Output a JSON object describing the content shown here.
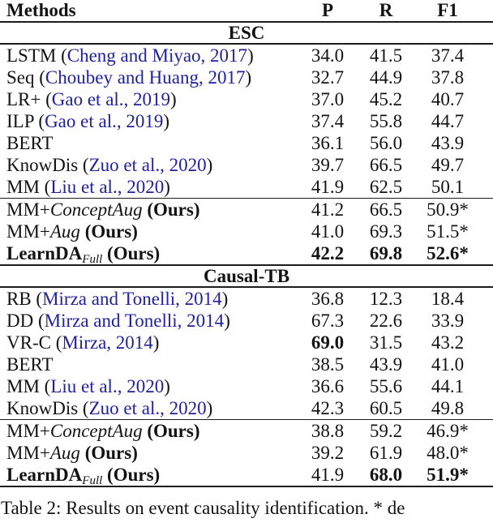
{
  "colors": {
    "citation_blue": "#21219f",
    "text": "#131313",
    "rule": "#1c1c1c"
  },
  "table": {
    "headers": {
      "methods": "Methods",
      "p": "P",
      "r": "R",
      "f1": "F1"
    },
    "common": {
      "ours_suffix": "(Ours)"
    },
    "sections": [
      {
        "title": "ESC",
        "rows": [
          {
            "pre": "LSTM (",
            "cite": "Cheng and Miyao, 2017",
            "post": ")",
            "p": "34.0",
            "r": "41.5",
            "f1": "37.4"
          },
          {
            "pre": "Seq (",
            "cite": "Choubey and Huang, 2017",
            "post": ")",
            "p": "32.7",
            "r": "44.9",
            "f1": "37.8"
          },
          {
            "pre": "LR+ (",
            "cite": "Gao et al., 2019",
            "post": ")",
            "p": "37.0",
            "r": "45.2",
            "f1": "40.7"
          },
          {
            "pre": "ILP (",
            "cite": "Gao et al., 2019",
            "post": ")",
            "p": "37.4",
            "r": "55.8",
            "f1": "44.7"
          },
          {
            "pre": "BERT",
            "p": "36.1",
            "r": "56.0",
            "f1": "43.9"
          },
          {
            "pre": "KnowDis (",
            "cite": "Zuo et al., 2020",
            "post": ")",
            "p": "39.7",
            "r": "66.5",
            "f1": "49.7"
          },
          {
            "pre": "MM (",
            "cite": "Liu et al., 2020",
            "post": ")",
            "p": "41.9",
            "r": "62.5",
            "f1": "50.1"
          }
        ],
        "ours_rows": [
          {
            "pre": "MM+",
            "italic": "ConceptAug",
            "p": "41.2",
            "r": "66.5",
            "f1": "50.9*"
          },
          {
            "pre": "MM+",
            "italic": "Aug",
            "p": "41.0",
            "r": "69.3",
            "f1": "51.5*"
          },
          {
            "bold": "LearnDA",
            "sub": "Full",
            "p": "42.2",
            "r": "69.8",
            "f1": "52.6*"
          }
        ]
      },
      {
        "title": "Causal-TB",
        "rows": [
          {
            "pre": "RB (",
            "cite": "Mirza and Tonelli, 2014",
            "post": ")",
            "p": "36.8",
            "r": "12.3",
            "f1": "18.4"
          },
          {
            "pre": "DD (",
            "cite": "Mirza and Tonelli, 2014",
            "post": ")",
            "p": "67.3",
            "r": "22.6",
            "f1": "33.9"
          },
          {
            "pre": "VR-C (",
            "cite": "Mirza, 2014",
            "post": ")",
            "p": "69.0",
            "r": "31.5",
            "f1": "43.2"
          },
          {
            "pre": "BERT",
            "p": "38.5",
            "r": "43.9",
            "f1": "41.0"
          },
          {
            "pre": "MM (",
            "cite": "Liu et al., 2020",
            "post": ")",
            "p": "36.6",
            "r": "55.6",
            "f1": "44.1"
          },
          {
            "pre": "KnowDis (",
            "cite": "Zuo et al., 2020",
            "post": ")",
            "p": "42.3",
            "r": "60.5",
            "f1": "49.8"
          }
        ],
        "ours_rows": [
          {
            "pre": "MM+",
            "italic": "ConceptAug",
            "p": "38.8",
            "r": "59.2",
            "f1": "46.9*"
          },
          {
            "pre": "MM+",
            "italic": "Aug",
            "p": "39.2",
            "r": "61.9",
            "f1": "48.0*"
          },
          {
            "bold": "LearnDA",
            "sub": "Full",
            "p": "41.9",
            "r": "68.0",
            "f1": "51.9*"
          }
        ]
      }
    ]
  },
  "caption": "Table 2: Results on event causality identification. * de"
}
